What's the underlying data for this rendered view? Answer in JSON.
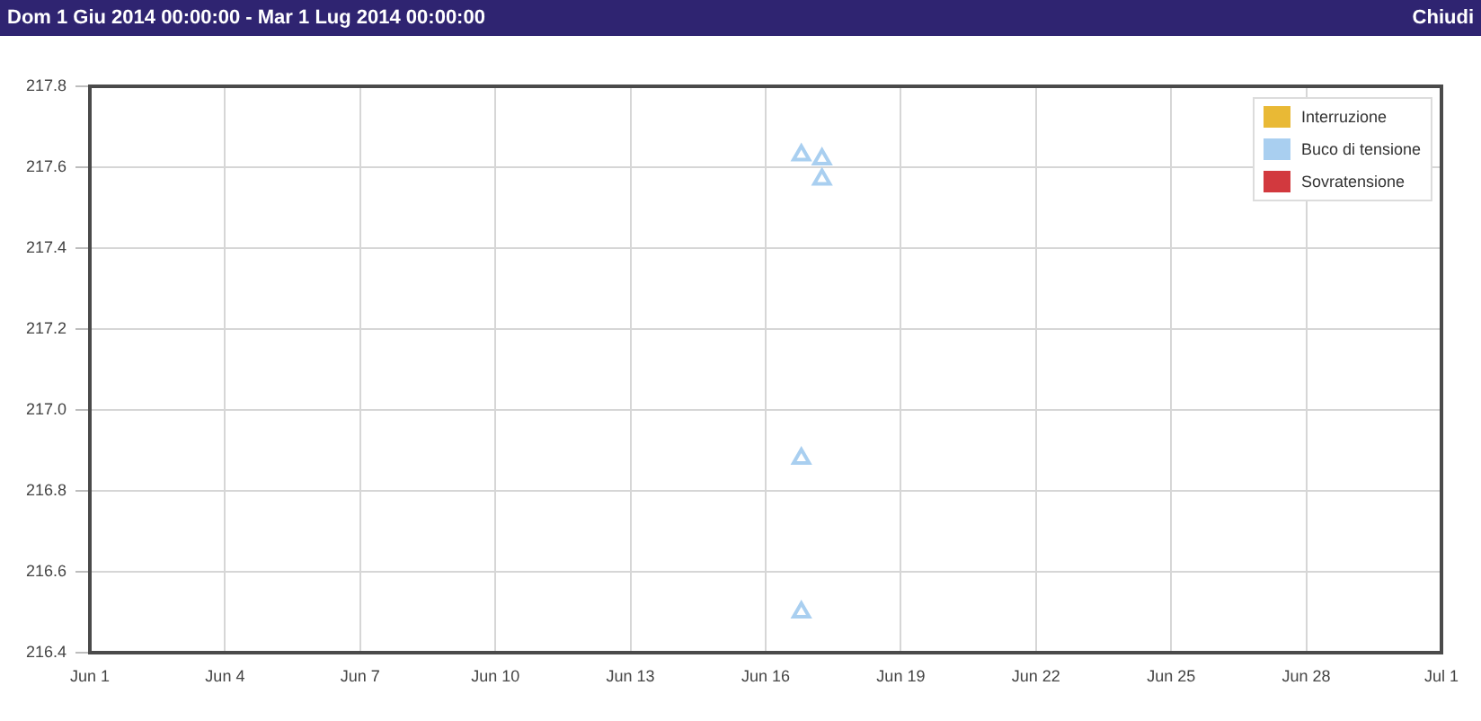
{
  "chart_data": {
    "type": "scatter",
    "title": "Dom 1 Giu 2014 00:00:00 - Mar 1 Lug 2014 00:00:00",
    "annotations": [
      "Chiudi"
    ],
    "series": [
      {
        "name": "Interruzione",
        "color": "#e9b935"
      },
      {
        "name": "Buco di tensione",
        "color": "#a9cff0",
        "x": [
          "2014-06-16T19:00",
          "2014-06-17T06:00",
          "2014-06-17T06:00",
          "2014-06-16T19:00",
          "2014-06-16T19:00"
        ],
        "values": [
          217.63,
          217.62,
          217.57,
          216.88,
          216.5
        ]
      },
      {
        "name": "Sovratensione",
        "color": "#d2393e"
      }
    ],
    "xlim": [
      "2014-06-01",
      "2014-07-01"
    ],
    "xticks": [
      {
        "value": "2014-06-01",
        "label": "Jun 1"
      },
      {
        "value": "2014-06-04",
        "label": "Jun 4"
      },
      {
        "value": "2014-06-07",
        "label": "Jun 7"
      },
      {
        "value": "2014-06-10",
        "label": "Jun 10"
      },
      {
        "value": "2014-06-13",
        "label": "Jun 13"
      },
      {
        "value": "2014-06-16",
        "label": "Jun 16"
      },
      {
        "value": "2014-06-19",
        "label": "Jun 19"
      },
      {
        "value": "2014-06-22",
        "label": "Jun 22"
      },
      {
        "value": "2014-06-25",
        "label": "Jun 25"
      },
      {
        "value": "2014-06-28",
        "label": "Jun 28"
      },
      {
        "value": "2014-07-01",
        "label": "Jul 1"
      }
    ],
    "ylim": [
      216.4,
      217.8
    ],
    "yticks": [
      216.4,
      216.6,
      216.8,
      {
        "value": 217,
        "label": "217.0"
      },
      217.2,
      217.4,
      217.6,
      217.8
    ],
    "grid": true,
    "legend": "top right",
    "marker": "triangle"
  }
}
